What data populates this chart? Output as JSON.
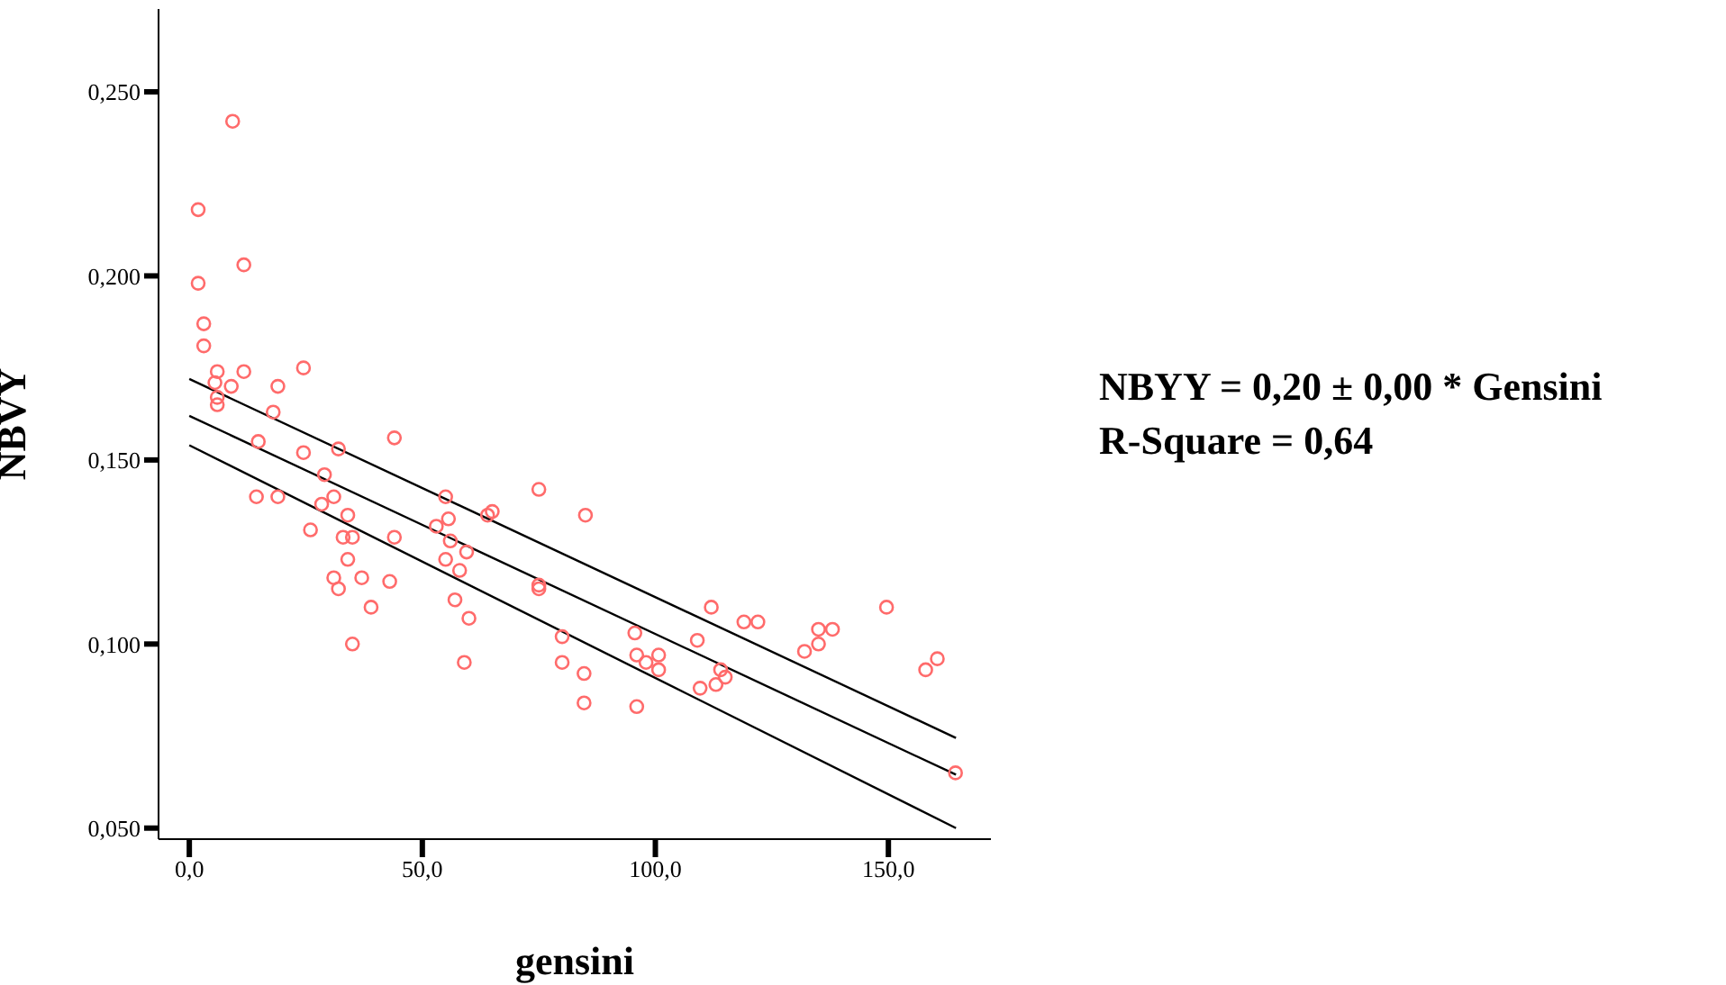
{
  "chart_data": {
    "type": "scatter",
    "xlabel": "gensini",
    "ylabel": "NBVY",
    "annotations": [
      "NBYY = 0,20 ± 0,00 * Gensini",
      "R-Square = 0,64"
    ],
    "xlim": [
      -6.6,
      172
    ],
    "ylim": [
      0.047,
      0.2725
    ],
    "xticks": [
      {
        "value": 0,
        "label": "0,0"
      },
      {
        "value": 50,
        "label": "50,0"
      },
      {
        "value": 100,
        "label": "100,0"
      },
      {
        "value": 150,
        "label": "150,0"
      }
    ],
    "yticks": [
      {
        "value": 0.05,
        "label": "0,050"
      },
      {
        "value": 0.1,
        "label": "0,100"
      },
      {
        "value": 0.15,
        "label": "0,150"
      },
      {
        "value": 0.2,
        "label": "0,200"
      },
      {
        "value": 0.25,
        "label": "0,250"
      }
    ],
    "grid": false,
    "series": [
      {
        "marker": "circle",
        "color": "#ff6b6b",
        "x": [
          1.9,
          1.9,
          9.3,
          11.7,
          3.1,
          3.1,
          6,
          5.5,
          6,
          6,
          11.7,
          9,
          19,
          24.5,
          18,
          14.8,
          14.4,
          19,
          24.5,
          26,
          29,
          28.4,
          32,
          31,
          34,
          33,
          35,
          31,
          32,
          34,
          37,
          39,
          35,
          44,
          44,
          43,
          53,
          55,
          55.6,
          55,
          56,
          57,
          58,
          59.5,
          60,
          59,
          64,
          65,
          75,
          75,
          75,
          85,
          80,
          80,
          84.7,
          84.7,
          95.6,
          96,
          96,
          98,
          100.7,
          100.7,
          109,
          112,
          109.6,
          114,
          115,
          119,
          122,
          113,
          132,
          135,
          135,
          138,
          149.6,
          158,
          160.5,
          164.4
        ],
        "values": [
          0.218,
          0.198,
          0.242,
          0.203,
          0.187,
          0.181,
          0.174,
          0.171,
          0.167,
          0.165,
          0.174,
          0.17,
          0.17,
          0.175,
          0.163,
          0.155,
          0.14,
          0.14,
          0.152,
          0.131,
          0.146,
          0.138,
          0.153,
          0.14,
          0.135,
          0.129,
          0.129,
          0.118,
          0.115,
          0.123,
          0.118,
          0.11,
          0.1,
          0.156,
          0.129,
          0.117,
          0.132,
          0.14,
          0.134,
          0.123,
          0.128,
          0.112,
          0.12,
          0.125,
          0.107,
          0.095,
          0.135,
          0.136,
          0.142,
          0.116,
          0.115,
          0.135,
          0.102,
          0.095,
          0.084,
          0.092,
          0.103,
          0.097,
          0.083,
          0.095,
          0.093,
          0.097,
          0.101,
          0.11,
          0.088,
          0.093,
          0.091,
          0.106,
          0.106,
          0.089,
          0.098,
          0.1,
          0.104,
          0.104,
          0.11,
          0.093,
          0.096,
          0.065
        ]
      },
      {
        "type": "line",
        "marker": "none",
        "color": "#000000",
        "x": [
          0,
          164.5
        ],
        "values": [
          0.172,
          0.0745
        ]
      },
      {
        "type": "line",
        "marker": "none",
        "color": "#000000",
        "x": [
          0,
          164.5
        ],
        "values": [
          0.162,
          0.0645
        ]
      },
      {
        "type": "line",
        "marker": "none",
        "color": "#000000",
        "x": [
          0,
          164.5
        ],
        "values": [
          0.154,
          0.05
        ]
      }
    ]
  }
}
